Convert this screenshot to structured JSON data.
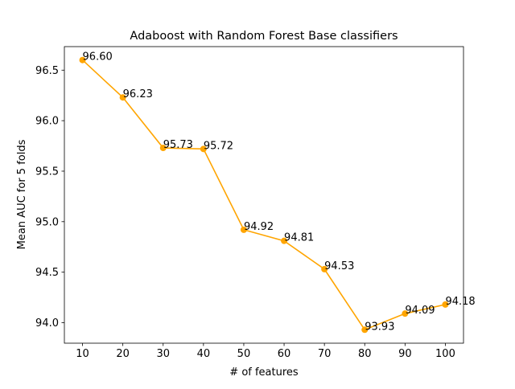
{
  "chart_data": {
    "type": "line",
    "title": "Adaboost with Random Forest Base classifiers",
    "xlabel": "# of features",
    "ylabel": "Mean AUC for 5 folds",
    "x": [
      10,
      20,
      30,
      40,
      50,
      60,
      70,
      80,
      90,
      100
    ],
    "series": [
      {
        "values": [
          96.6,
          96.23,
          95.73,
          95.72,
          94.92,
          94.81,
          94.53,
          93.93,
          94.09,
          94.18
        ],
        "labels": [
          "96.60",
          "96.23",
          "95.73",
          "95.72",
          "94.92",
          "94.81",
          "94.53",
          "93.93",
          "94.09",
          "94.18"
        ],
        "color": "#ffa500"
      }
    ],
    "xlim": [
      5.5,
      104.5
    ],
    "ylim": [
      93.797,
      96.733
    ],
    "xticks": [
      10,
      20,
      30,
      40,
      50,
      60,
      70,
      80,
      90,
      100
    ],
    "xtick_labels": [
      "10",
      "20",
      "30",
      "40",
      "50",
      "60",
      "70",
      "80",
      "90",
      "100"
    ],
    "yticks": [
      94.0,
      94.5,
      95.0,
      95.5,
      96.0,
      96.5
    ],
    "ytick_labels": [
      "94.0",
      "94.5",
      "95.0",
      "95.5",
      "96.0",
      "96.5"
    ],
    "grid": false,
    "legend": "none"
  }
}
